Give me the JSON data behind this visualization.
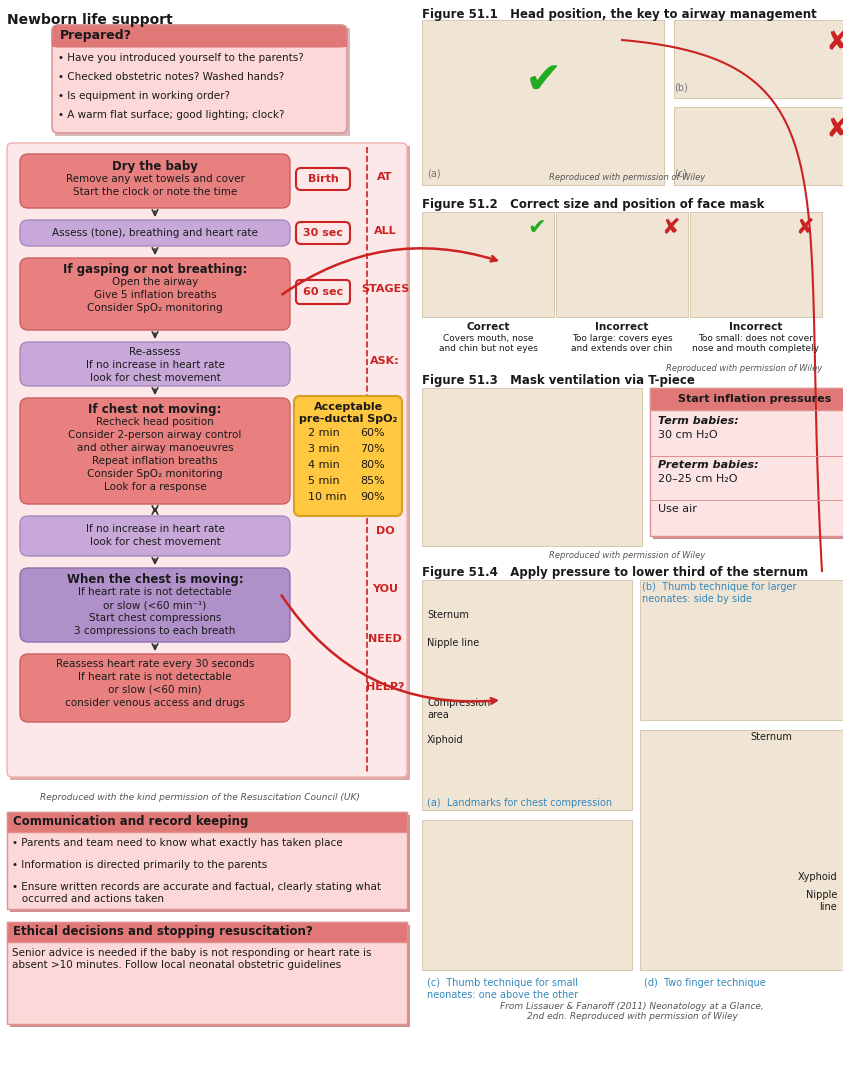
{
  "title_left": "Newborn life support",
  "bg": "#ffffff",
  "T": "#1a1a1a",
  "R": "#cc2222",
  "G": "#555555",
  "B": "#3388bb",
  "pink_bg": "#fce8e8",
  "pink_hdr": "#e07878",
  "pink_box": "#e88080",
  "purple_box": "#c8a8d8",
  "purple_dark": "#b090c8",
  "yellow_spo2": "#ffc850",
  "infl_bg": "#fce4e4",
  "infl_hdr": "#e07878",
  "comm_bg": "#fcd8d8",
  "comm_hdr": "#e07878",
  "prepared_header": "Prepared?",
  "prepared_items": [
    "Have you introduced yourself to the parents?",
    "Checked obstetric notes? Washed hands?",
    "Is equipment in working order?",
    "A warm flat surface; good lighting; clock?"
  ],
  "comm_header": "Communication and record keeping",
  "comm_items": [
    "Parents and team need to know what exactly has taken place",
    "Information is directed primarily to the parents",
    "Ensure written records are accurate and factual, clearly stating what\n   occurred and actions taken"
  ],
  "ethical_header": "Ethical decisions and stopping resuscitation?",
  "ethical_body": "Senior advice is needed if the baby is not responding or heart rate is\nabsent >10 minutes. Follow local neonatal obstetric guidelines",
  "spo2_rows": [
    [
      "2 min",
      "60%"
    ],
    [
      "3 min",
      "70%"
    ],
    [
      "4 min",
      "80%"
    ],
    [
      "5 min",
      "85%"
    ],
    [
      "10 min",
      "90%"
    ]
  ],
  "resus_credit": "Reproduced with the kind permission of the Resuscitation Council (UK)",
  "wiley": "Reproduced with permission of Wiley",
  "from_credit": "From Lissauer & Fanaroff (2011) Neonatology at a Glance,\n2nd edn. Reproduced with permission of Wiley",
  "f1_title": "Figure 51.1   Head position, the key to airway management",
  "f2_title": "Figure 51.2   Correct size and position of face mask",
  "f3_title": "Figure 51.3   Mask ventilation via T-piece",
  "f4_title": "Figure 51.4   Apply pressure to lower third of the sternum",
  "mask_labels": [
    "Correct",
    "Incorrect",
    "Incorrect"
  ],
  "mask_sub": [
    "Covers mouth, nose\nand chin but not eyes",
    "Too large: covers eyes\nand extends over chin",
    "Too small: does not cover\nnose and mouth completely"
  ],
  "infl_title": "Start inflation pressures",
  "term_hdr": "Term babies:",
  "term_val": "30 cm H₂O",
  "pre_hdr": "Preterm babies:",
  "pre_val": "20–25 cm H₂O",
  "use_air": "Use air",
  "f4_labels": [
    "Sternum",
    "Nipple line",
    "Compression\narea",
    "Xiphoid"
  ],
  "f4b_label": "Thumb technique for larger\nneonates: side by side",
  "f4c_label": "Thumb technique for small\nneonates: one above the other",
  "f4d_label": "Two finger technique",
  "f4a_label": "Landmarks for chest compression",
  "sternum2": "Sternum",
  "xyphoid2": "Xyphoid",
  "nipple2": "Nipple\nline"
}
